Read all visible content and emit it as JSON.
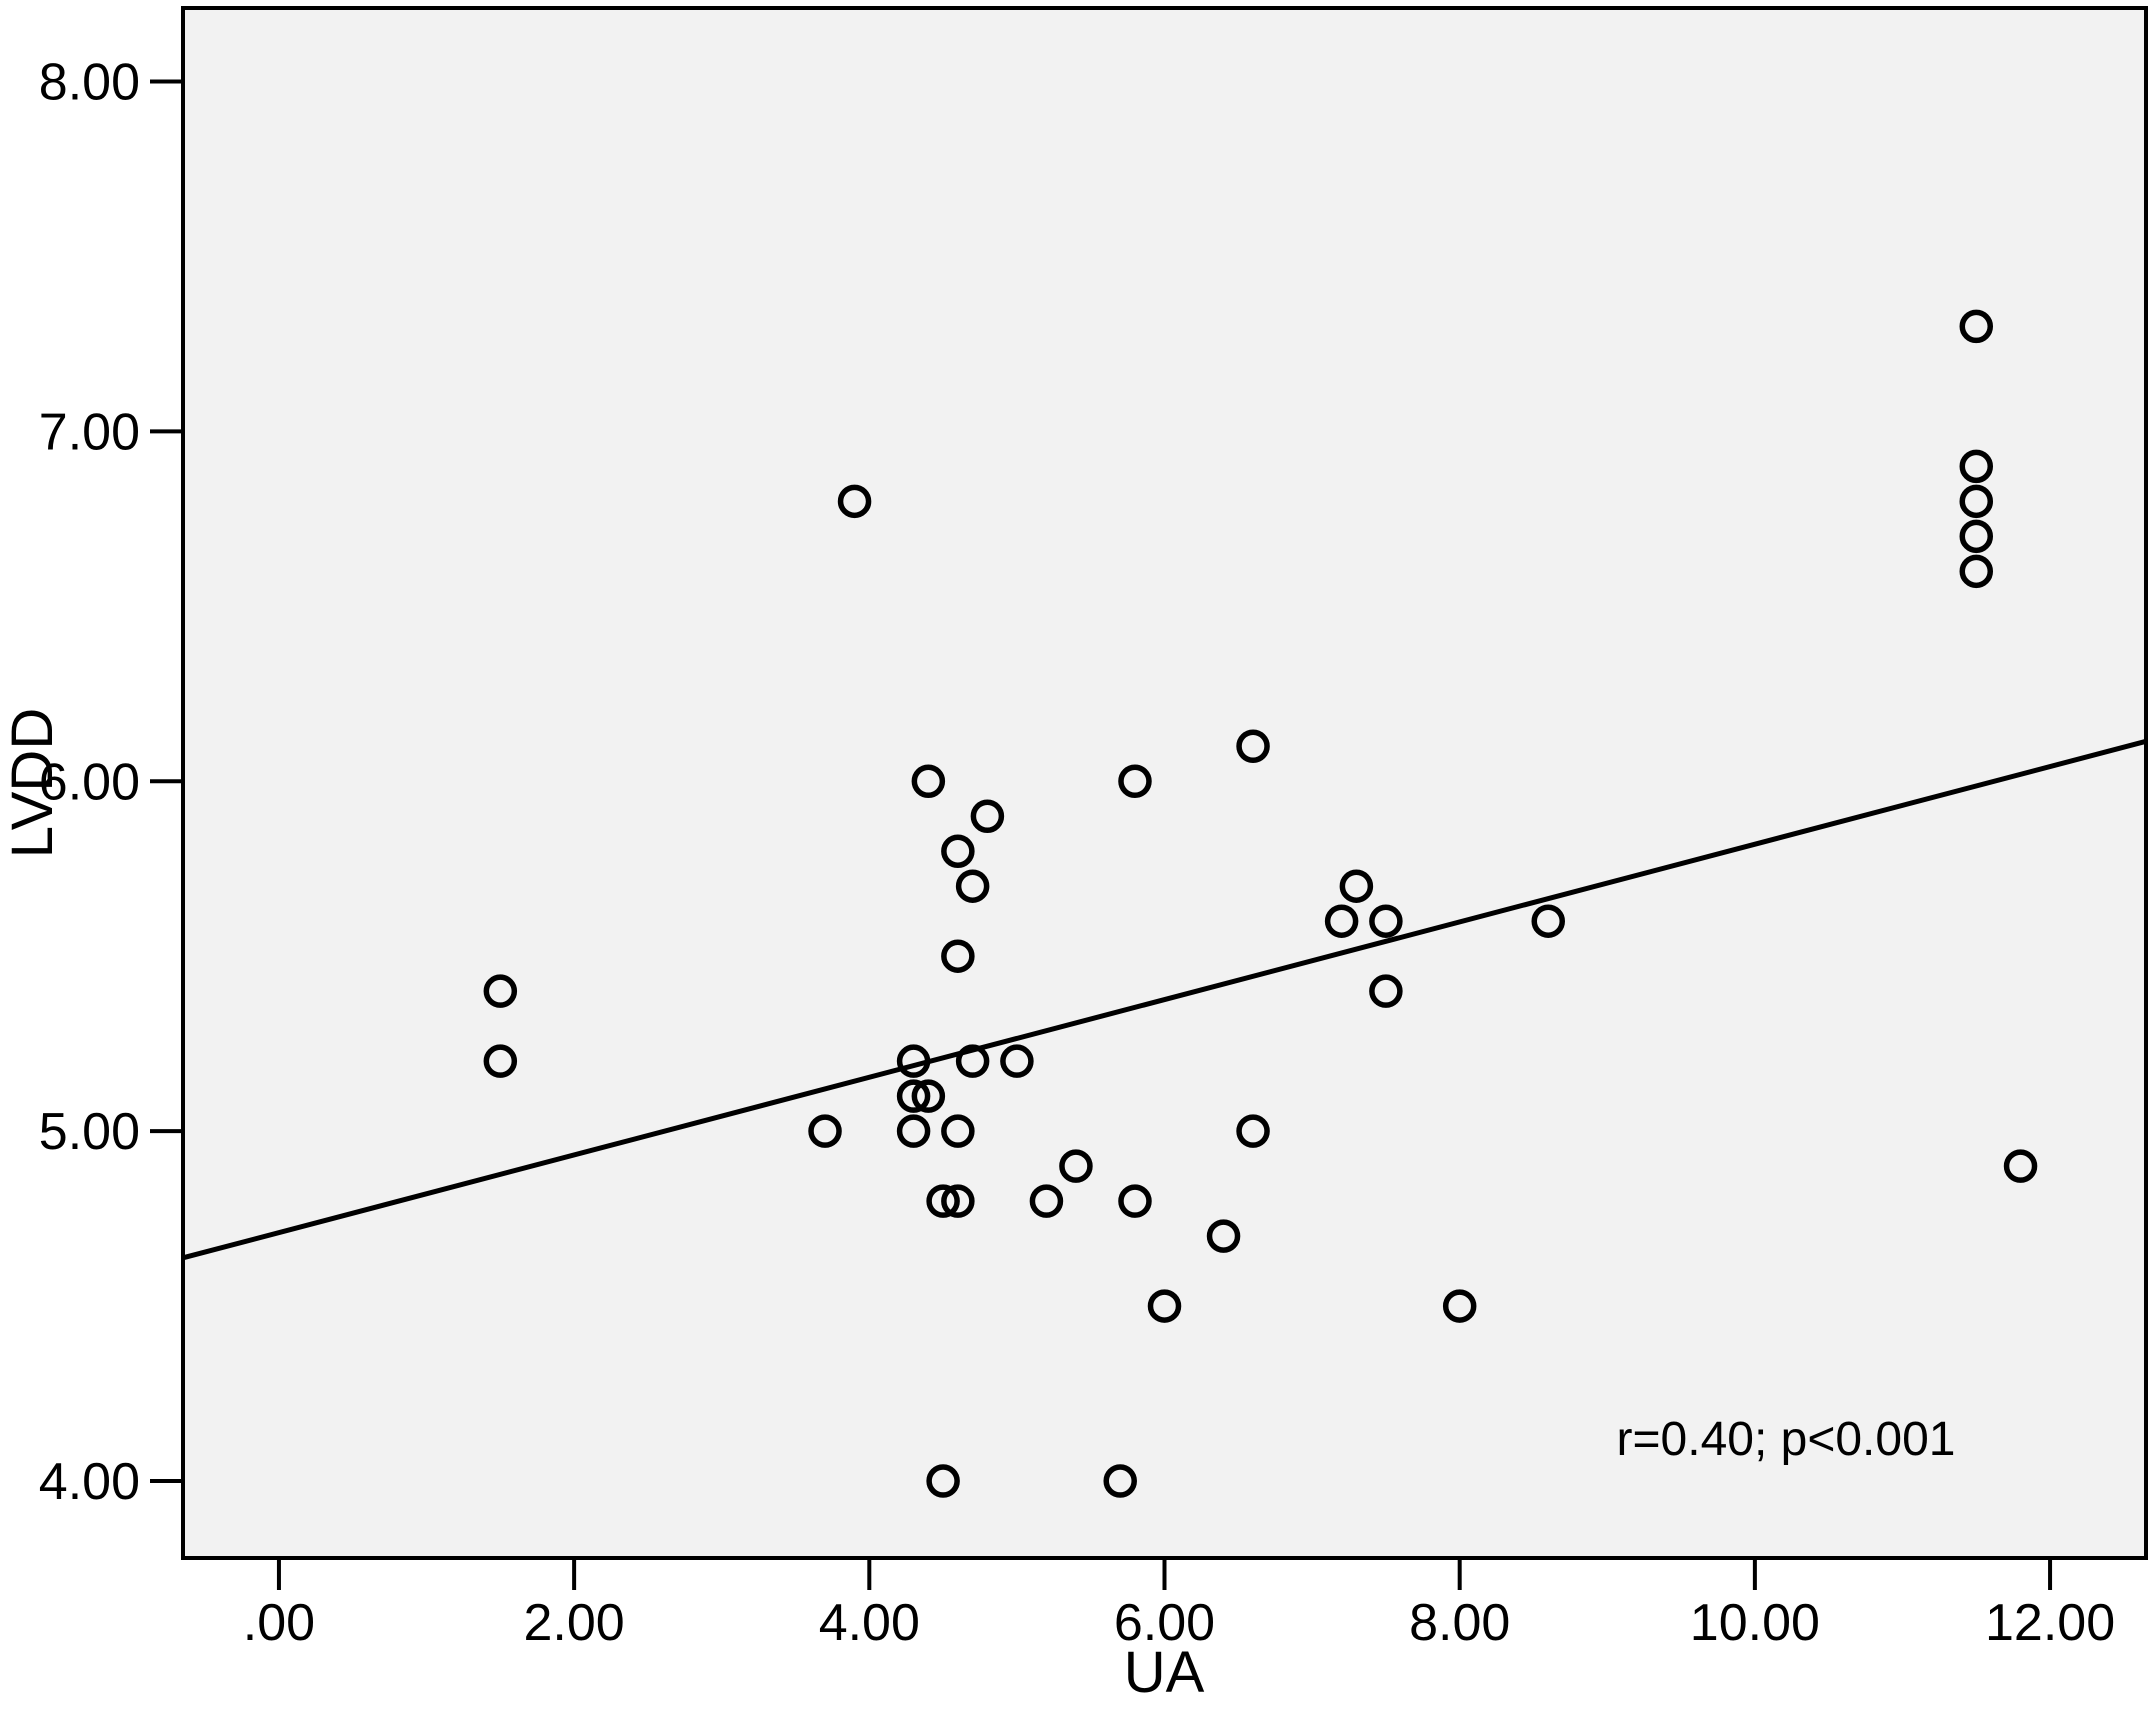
{
  "figure": {
    "background_color": "#ffffff",
    "plot_background_color": "#f2f2f2",
    "frame_color": "#000000",
    "marker_color": "#000000",
    "line_color": "#000000"
  },
  "chart_data": {
    "type": "scatter",
    "title": "",
    "xlabel": "UA",
    "ylabel": "LVDD",
    "xlim": [
      -0.65,
      12.65
    ],
    "ylim": [
      3.78,
      8.21
    ],
    "grid": false,
    "legend": null,
    "x_ticks": [
      {
        "value": 0,
        "label": ".00"
      },
      {
        "value": 2,
        "label": "2.00"
      },
      {
        "value": 4,
        "label": "4.00"
      },
      {
        "value": 6,
        "label": "6.00"
      },
      {
        "value": 8,
        "label": "8.00"
      },
      {
        "value": 10,
        "label": "10.00"
      },
      {
        "value": 12,
        "label": "12.00"
      }
    ],
    "y_ticks": [
      {
        "value": 4,
        "label": "4.00"
      },
      {
        "value": 5,
        "label": "5.00"
      },
      {
        "value": 6,
        "label": "6.00"
      },
      {
        "value": 7,
        "label": "7.00"
      },
      {
        "value": 8,
        "label": "8.00"
      }
    ],
    "points": [
      [
        1.5,
        5.4
      ],
      [
        1.5,
        5.2
      ],
      [
        3.7,
        5.0
      ],
      [
        3.9,
        6.8
      ],
      [
        4.3,
        5.2
      ],
      [
        4.3,
        5.1
      ],
      [
        4.3,
        5.0
      ],
      [
        4.4,
        6.0
      ],
      [
        4.4,
        5.1
      ],
      [
        4.5,
        4.8
      ],
      [
        4.5,
        4.0
      ],
      [
        4.6,
        5.8
      ],
      [
        4.6,
        5.5
      ],
      [
        4.6,
        5.0
      ],
      [
        4.6,
        4.8
      ],
      [
        4.7,
        5.7
      ],
      [
        4.7,
        5.2
      ],
      [
        4.8,
        5.9
      ],
      [
        5.0,
        5.2
      ],
      [
        5.2,
        4.8
      ],
      [
        5.4,
        4.9
      ],
      [
        5.7,
        4.0
      ],
      [
        5.8,
        6.0
      ],
      [
        5.8,
        4.8
      ],
      [
        6.0,
        4.5
      ],
      [
        6.4,
        4.7
      ],
      [
        6.6,
        6.1
      ],
      [
        6.6,
        5.0
      ],
      [
        7.2,
        5.6
      ],
      [
        7.3,
        5.7
      ],
      [
        7.5,
        5.6
      ],
      [
        7.5,
        5.4
      ],
      [
        8.0,
        4.5
      ],
      [
        8.6,
        5.6
      ],
      [
        11.5,
        7.3
      ],
      [
        11.5,
        6.9
      ],
      [
        11.5,
        6.8
      ],
      [
        11.5,
        6.7
      ],
      [
        11.5,
        6.6
      ],
      [
        11.8,
        4.9
      ]
    ],
    "regression_line": {
      "slope": 0.111,
      "intercept": 4.71
    },
    "annotation": {
      "text": "r=0.40; p<0.001",
      "x": 10.2,
      "y": 4.12
    },
    "marker": {
      "shape": "open-circle",
      "radius": 14,
      "stroke_width": 5.5
    }
  }
}
